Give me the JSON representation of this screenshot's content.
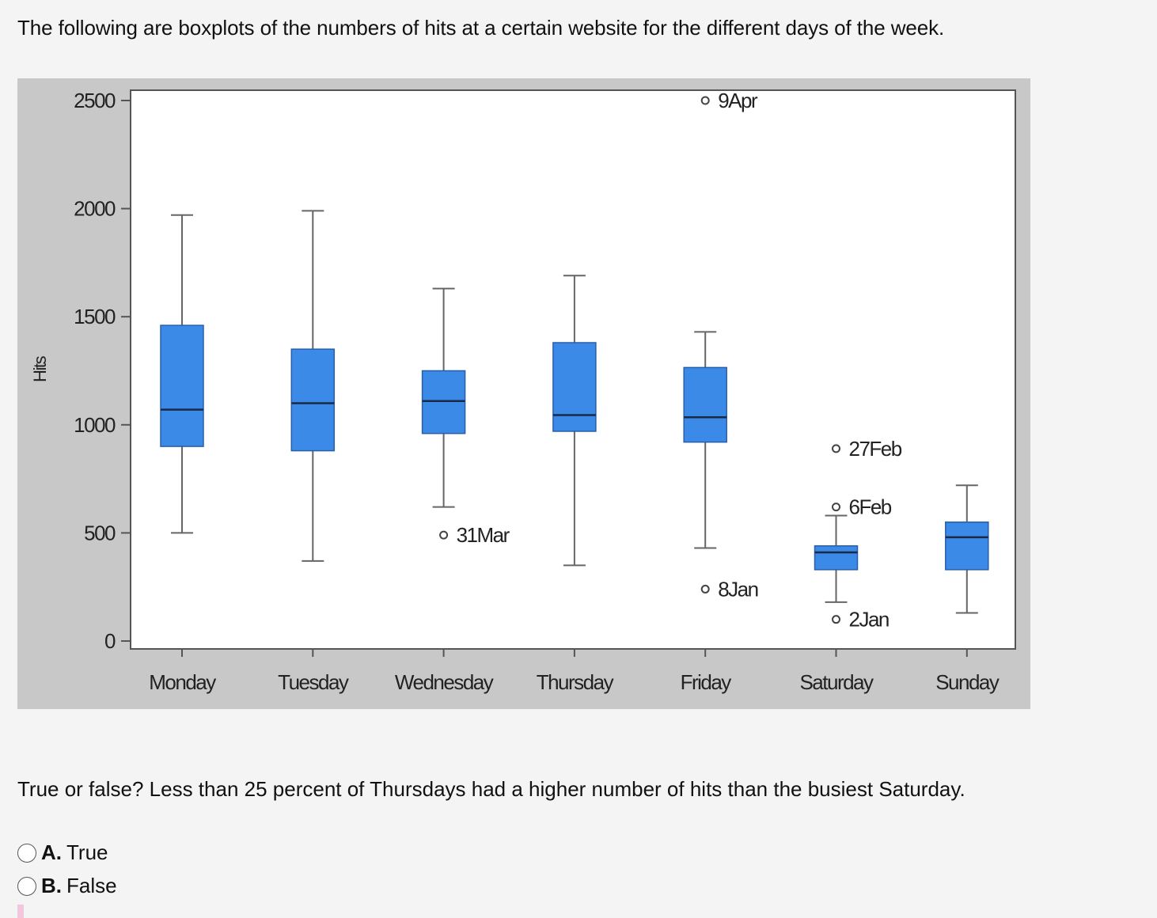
{
  "intro_text": "The following are boxplots of the numbers of hits at a certain website for the different days of the week.",
  "question_text": "True or false? Less than 25 percent of Thursdays had a higher number of hits than the busiest Saturday.",
  "options": [
    {
      "letter": "A.",
      "label": "True"
    },
    {
      "letter": "B.",
      "label": "False"
    }
  ],
  "colors": {
    "box_fill": "#3b8ae8",
    "whisker": "#666666",
    "figure_bg": "#c8c8c8"
  },
  "chart_data": {
    "type": "boxplot",
    "ylabel": "Hits",
    "xlabel": "",
    "ylim": [
      0,
      2500
    ],
    "yticks": [
      "0",
      "500",
      "1000",
      "1500",
      "2000",
      "2500"
    ],
    "categories": [
      "Monday",
      "Tuesday",
      "Wednesday",
      "Thursday",
      "Friday",
      "Saturday",
      "Sunday"
    ],
    "boxes": [
      {
        "day": "Monday",
        "whisker_low": 500,
        "q1": 900,
        "median": 1070,
        "q3": 1460,
        "whisker_high": 1970
      },
      {
        "day": "Tuesday",
        "whisker_low": 370,
        "q1": 880,
        "median": 1100,
        "q3": 1350,
        "whisker_high": 1990
      },
      {
        "day": "Wednesday",
        "whisker_low": 620,
        "q1": 960,
        "median": 1110,
        "q3": 1250,
        "whisker_high": 1630
      },
      {
        "day": "Thursday",
        "whisker_low": 350,
        "q1": 970,
        "median": 1045,
        "q3": 1380,
        "whisker_high": 1690
      },
      {
        "day": "Friday",
        "whisker_low": 430,
        "q1": 920,
        "median": 1035,
        "q3": 1265,
        "whisker_high": 1430
      },
      {
        "day": "Saturday",
        "whisker_low": 180,
        "q1": 330,
        "median": 410,
        "q3": 440,
        "whisker_high": 580
      },
      {
        "day": "Sunday",
        "whisker_low": 130,
        "q1": 330,
        "median": 480,
        "q3": 550,
        "whisker_high": 720
      }
    ],
    "outliers": [
      {
        "day": "Wednesday",
        "value": 490,
        "label": "31Mar"
      },
      {
        "day": "Friday",
        "value": 2500,
        "label": "9Apr"
      },
      {
        "day": "Friday",
        "value": 240,
        "label": "8Jan"
      },
      {
        "day": "Saturday",
        "value": 890,
        "label": "27Feb"
      },
      {
        "day": "Saturday",
        "value": 620,
        "label": "6Feb"
      },
      {
        "day": "Saturday",
        "value": 100,
        "label": "2Jan"
      }
    ]
  }
}
